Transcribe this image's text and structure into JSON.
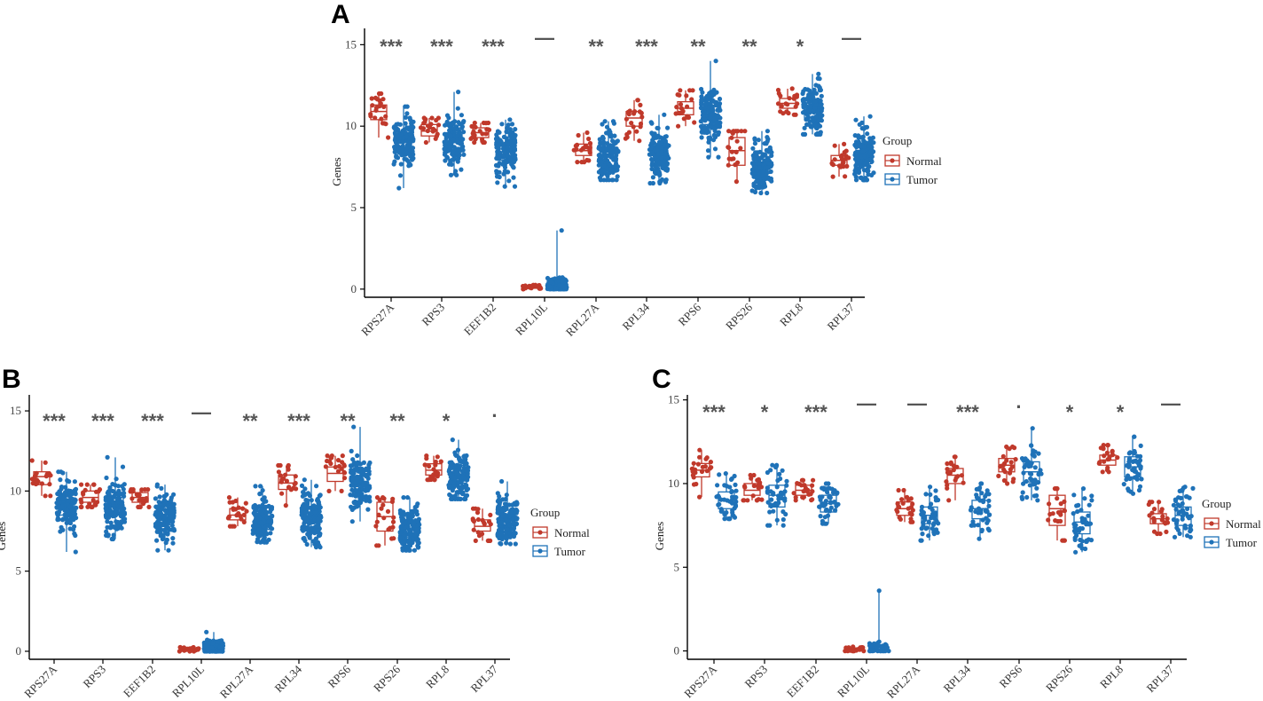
{
  "figure": {
    "panel_labels": [
      "A",
      "B",
      "C"
    ],
    "colors": {
      "normal": "#c0392b",
      "tumor": "#1f72b8"
    }
  },
  "chart_data": [
    {
      "panel": "A",
      "type": "box",
      "ylabel": "Genes",
      "xlabel": "",
      "ylim": [
        -0.5,
        16
      ],
      "yticks": [
        0,
        5,
        10,
        15
      ],
      "categories": [
        "RPS27A",
        "RPS3",
        "EEF1B2",
        "RPL10L",
        "RPL27A",
        "RPL34",
        "RPS6",
        "RPS26",
        "RPL8",
        "RPL37"
      ],
      "significance": [
        "***",
        "***",
        "***",
        "—",
        "**",
        "***",
        "**",
        "**",
        "*",
        "—"
      ],
      "legend": {
        "title": "Group",
        "entries": [
          "Normal",
          "Tumor"
        ]
      },
      "series": [
        {
          "name": "Normal",
          "color": "#c0392b",
          "n": 22,
          "jitter_sd": 0.55,
          "box": [
            {
              "min": 9.3,
              "q1": 10.4,
              "median": 10.9,
              "q3": 11.3,
              "max": 12.0
            },
            {
              "min": 9.0,
              "q1": 9.4,
              "median": 9.7,
              "q3": 10.1,
              "max": 10.5
            },
            {
              "min": 9.0,
              "q1": 9.3,
              "median": 9.6,
              "q3": 9.9,
              "max": 10.2
            },
            {
              "min": 0.0,
              "q1": 0.05,
              "median": 0.1,
              "q3": 0.18,
              "max": 0.25
            },
            {
              "min": 7.8,
              "q1": 8.2,
              "median": 8.5,
              "q3": 8.9,
              "max": 9.6
            },
            {
              "min": 9.1,
              "q1": 10.0,
              "median": 10.5,
              "q3": 10.9,
              "max": 11.6
            },
            {
              "min": 10.0,
              "q1": 10.7,
              "median": 11.1,
              "q3": 11.5,
              "max": 12.2
            },
            {
              "min": 6.6,
              "q1": 7.6,
              "median": 8.5,
              "q3": 9.3,
              "max": 9.7
            },
            {
              "min": 10.7,
              "q1": 11.1,
              "median": 11.4,
              "q3": 11.7,
              "max": 12.3
            },
            {
              "min": 6.9,
              "q1": 7.6,
              "median": 7.9,
              "q3": 8.2,
              "max": 8.9
            }
          ]
        },
        {
          "name": "Tumor",
          "color": "#1f72b8",
          "n": 150,
          "jitter_sd": 0.6,
          "box": [
            {
              "min": 6.2,
              "q1": 8.5,
              "median": 9.0,
              "q3": 9.5,
              "max": 11.2
            },
            {
              "min": 7.0,
              "q1": 8.5,
              "median": 9.0,
              "q3": 9.6,
              "max": 12.1
            },
            {
              "min": 6.3,
              "q1": 7.9,
              "median": 8.4,
              "q3": 8.9,
              "max": 10.4
            },
            {
              "min": 0.0,
              "q1": 0.1,
              "median": 0.22,
              "q3": 0.38,
              "max": 3.6
            },
            {
              "min": 6.7,
              "q1": 7.6,
              "median": 8.1,
              "q3": 8.6,
              "max": 10.3
            },
            {
              "min": 6.5,
              "q1": 7.7,
              "median": 8.2,
              "q3": 8.7,
              "max": 10.7
            },
            {
              "min": 8.1,
              "q1": 10.1,
              "median": 10.6,
              "q3": 11.2,
              "max": 14.0
            },
            {
              "min": 5.9,
              "q1": 7.1,
              "median": 7.6,
              "q3": 8.1,
              "max": 9.7
            },
            {
              "min": 9.5,
              "q1": 10.5,
              "median": 11.0,
              "q3": 11.6,
              "max": 13.2
            },
            {
              "min": 6.7,
              "q1": 7.7,
              "median": 8.2,
              "q3": 8.8,
              "max": 10.6
            }
          ]
        }
      ]
    },
    {
      "panel": "B",
      "type": "box",
      "ylabel": "Genes",
      "xlabel": "",
      "ylim": [
        -0.5,
        16
      ],
      "yticks": [
        0,
        5,
        10,
        15
      ],
      "categories": [
        "RPS27A",
        "RPS3",
        "EEF1B2",
        "RPL10L",
        "RPL27A",
        "RPL34",
        "RPS6",
        "RPS26",
        "RPL8",
        "RPL37"
      ],
      "significance": [
        "***",
        "***",
        "***",
        "—",
        "**",
        "***",
        "**",
        "**",
        "*",
        "·"
      ],
      "legend": {
        "title": "Group",
        "entries": [
          "Normal",
          "Tumor"
        ]
      },
      "series": [
        {
          "name": "Normal",
          "color": "#c0392b",
          "n": 22,
          "jitter_sd": 0.55,
          "box": [
            {
              "min": 9.7,
              "q1": 10.4,
              "median": 10.9,
              "q3": 11.2,
              "max": 11.9
            },
            {
              "min": 9.0,
              "q1": 9.3,
              "median": 9.6,
              "q3": 10.0,
              "max": 10.4
            },
            {
              "min": 9.0,
              "q1": 9.3,
              "median": 9.6,
              "q3": 9.9,
              "max": 10.1
            },
            {
              "min": 0.0,
              "q1": 0.05,
              "median": 0.1,
              "q3": 0.18,
              "max": 0.25
            },
            {
              "min": 7.8,
              "q1": 8.2,
              "median": 8.5,
              "q3": 8.9,
              "max": 9.6
            },
            {
              "min": 9.1,
              "q1": 10.1,
              "median": 10.5,
              "q3": 11.0,
              "max": 11.6
            },
            {
              "min": 10.0,
              "q1": 10.6,
              "median": 11.1,
              "q3": 11.5,
              "max": 12.2
            },
            {
              "min": 6.6,
              "q1": 7.5,
              "median": 8.4,
              "q3": 9.3,
              "max": 9.6
            },
            {
              "min": 10.7,
              "q1": 11.0,
              "median": 11.3,
              "q3": 11.7,
              "max": 12.2
            },
            {
              "min": 6.9,
              "q1": 7.5,
              "median": 7.8,
              "q3": 8.2,
              "max": 8.9
            }
          ]
        },
        {
          "name": "Tumor",
          "color": "#1f72b8",
          "n": 150,
          "jitter_sd": 0.6,
          "box": [
            {
              "min": 6.2,
              "q1": 8.5,
              "median": 9.0,
              "q3": 9.5,
              "max": 11.2
            },
            {
              "min": 7.0,
              "q1": 8.5,
              "median": 9.0,
              "q3": 9.6,
              "max": 12.1
            },
            {
              "min": 6.3,
              "q1": 7.9,
              "median": 8.4,
              "q3": 8.9,
              "max": 10.4
            },
            {
              "min": 0.0,
              "q1": 0.1,
              "median": 0.22,
              "q3": 0.38,
              "max": 1.2
            },
            {
              "min": 6.8,
              "q1": 7.6,
              "median": 8.1,
              "q3": 8.6,
              "max": 10.3
            },
            {
              "min": 6.5,
              "q1": 7.7,
              "median": 8.2,
              "q3": 8.7,
              "max": 10.7
            },
            {
              "min": 8.1,
              "q1": 10.1,
              "median": 10.6,
              "q3": 11.2,
              "max": 14.0
            },
            {
              "min": 6.3,
              "q1": 7.1,
              "median": 7.6,
              "q3": 8.1,
              "max": 9.6
            },
            {
              "min": 9.5,
              "q1": 10.5,
              "median": 11.0,
              "q3": 11.6,
              "max": 13.2
            },
            {
              "min": 6.7,
              "q1": 7.7,
              "median": 8.2,
              "q3": 8.8,
              "max": 10.6
            }
          ]
        }
      ]
    },
    {
      "panel": "C",
      "type": "box",
      "ylabel": "Genes",
      "xlabel": "",
      "ylim": [
        -0.5,
        15.3
      ],
      "yticks": [
        0,
        5,
        10,
        15
      ],
      "categories": [
        "RPS27A",
        "RPS3",
        "EEF1B2",
        "RPL10L",
        "RPL27A",
        "RPL34",
        "RPS6",
        "RPS26",
        "RPL8",
        "RPL37"
      ],
      "significance": [
        "***",
        "*",
        "***",
        "—",
        "—",
        "***",
        "·",
        "*",
        "*",
        "—"
      ],
      "legend": {
        "title": "Group",
        "entries": [
          "Normal",
          "Tumor"
        ]
      },
      "series": [
        {
          "name": "Normal",
          "color": "#c0392b",
          "n": 22,
          "jitter_sd": 0.55,
          "box": [
            {
              "min": 9.2,
              "q1": 10.4,
              "median": 10.8,
              "q3": 11.2,
              "max": 12.0
            },
            {
              "min": 9.0,
              "q1": 9.3,
              "median": 9.6,
              "q3": 10.0,
              "max": 10.5
            },
            {
              "min": 9.0,
              "q1": 9.3,
              "median": 9.6,
              "q3": 9.9,
              "max": 10.2
            },
            {
              "min": 0.0,
              "q1": 0.05,
              "median": 0.1,
              "q3": 0.18,
              "max": 0.25
            },
            {
              "min": 7.7,
              "q1": 8.1,
              "median": 8.5,
              "q3": 8.9,
              "max": 9.6
            },
            {
              "min": 9.0,
              "q1": 10.0,
              "median": 10.5,
              "q3": 10.9,
              "max": 11.6
            },
            {
              "min": 10.0,
              "q1": 10.7,
              "median": 11.1,
              "q3": 11.5,
              "max": 12.2
            },
            {
              "min": 6.6,
              "q1": 7.5,
              "median": 8.5,
              "q3": 9.3,
              "max": 9.7
            },
            {
              "min": 10.7,
              "q1": 11.1,
              "median": 11.4,
              "q3": 11.7,
              "max": 12.3
            },
            {
              "min": 7.0,
              "q1": 7.6,
              "median": 7.9,
              "q3": 8.2,
              "max": 8.9
            }
          ]
        },
        {
          "name": "Tumor",
          "color": "#1f72b8",
          "n": 45,
          "jitter_sd": 0.55,
          "box": [
            {
              "min": 7.9,
              "q1": 8.5,
              "median": 9.0,
              "q3": 9.5,
              "max": 10.6
            },
            {
              "min": 7.5,
              "q1": 8.6,
              "median": 9.3,
              "q3": 9.9,
              "max": 11.1
            },
            {
              "min": 7.6,
              "q1": 8.3,
              "median": 8.8,
              "q3": 9.3,
              "max": 10.0
            },
            {
              "min": 0.0,
              "q1": 0.1,
              "median": 0.2,
              "q3": 0.35,
              "max": 3.6
            },
            {
              "min": 6.6,
              "q1": 7.6,
              "median": 8.1,
              "q3": 8.6,
              "max": 9.8
            },
            {
              "min": 6.7,
              "q1": 7.9,
              "median": 8.5,
              "q3": 9.0,
              "max": 10.0
            },
            {
              "min": 9.0,
              "q1": 10.1,
              "median": 10.7,
              "q3": 11.3,
              "max": 13.3
            },
            {
              "min": 5.9,
              "q1": 7.0,
              "median": 7.7,
              "q3": 8.3,
              "max": 9.7
            },
            {
              "min": 9.4,
              "q1": 10.4,
              "median": 11.0,
              "q3": 11.6,
              "max": 12.8
            },
            {
              "min": 6.8,
              "q1": 7.5,
              "median": 8.1,
              "q3": 8.6,
              "max": 9.8
            }
          ]
        }
      ]
    }
  ]
}
